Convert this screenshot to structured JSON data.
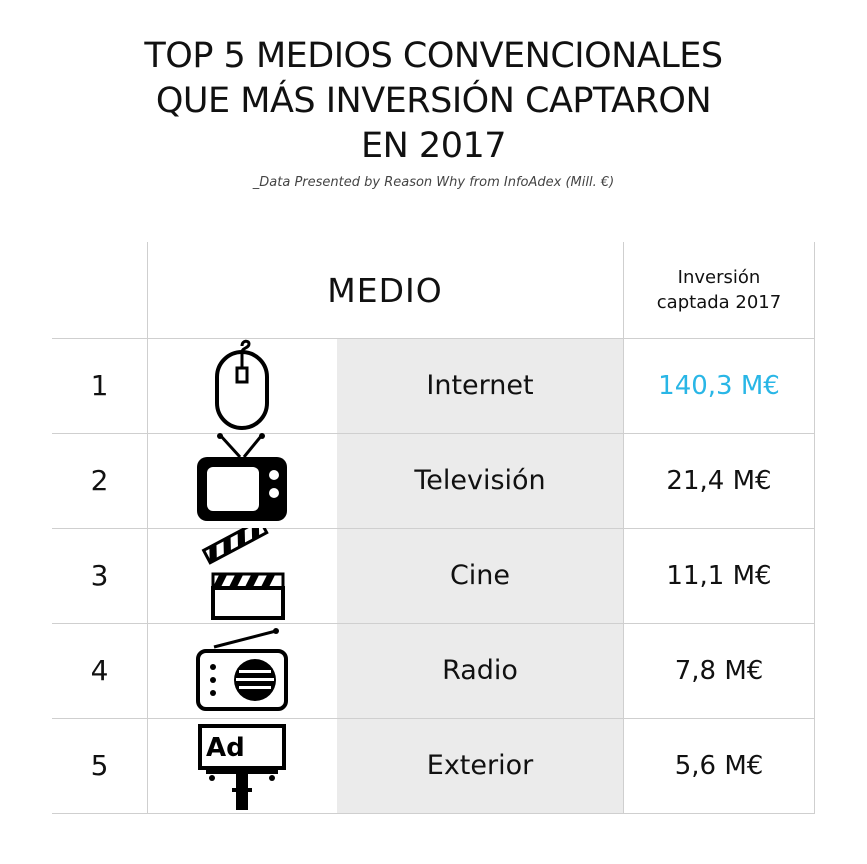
{
  "title_lines": [
    "TOP 5 MEDIOS CONVENCIONALES",
    "QUE MÁS INVERSIÓN CAPTARON",
    "EN 2017"
  ],
  "subtitle": "_Data Presented by Reason Why from InfoAdex (Mill. €)",
  "header": {
    "medio": "MEDIO",
    "investment_line1": "Inversión",
    "investment_line2": "captada 2017"
  },
  "colors": {
    "highlight": "#29b6e6",
    "text": "#111111",
    "cell_gray": "#ebebeb",
    "grid": "#cfcfcf"
  },
  "rows": [
    {
      "rank": "1",
      "medium": "Internet",
      "value_label": "140,3 M€",
      "icon": "mouse-icon"
    },
    {
      "rank": "2",
      "medium": "Televisión",
      "value_label": "21,4 M€",
      "icon": "tv-icon"
    },
    {
      "rank": "3",
      "medium": "Cine",
      "value_label": "11,1 M€",
      "icon": "clapperboard-icon"
    },
    {
      "rank": "4",
      "medium": "Radio",
      "value_label": "7,8 M€",
      "icon": "radio-icon"
    },
    {
      "rank": "5",
      "medium": "Exterior",
      "value_label": "5,6 M€",
      "icon": "billboard-icon",
      "icon_text": "Ad"
    }
  ],
  "chart_data": {
    "type": "table",
    "title": "TOP 5 MEDIOS CONVENCIONALES QUE MÁS INVERSIÓN CAPTARON EN 2017",
    "subtitle": "_Data Presented by Reason Why from InfoAdex (Mill. €)",
    "columns": [
      "",
      "MEDIO",
      "Inversión captada 2017"
    ],
    "categories": [
      "Internet",
      "Televisión",
      "Cine",
      "Radio",
      "Exterior"
    ],
    "values": [
      140.3,
      21.4,
      11.1,
      7.8,
      5.6
    ],
    "unit": "M€"
  }
}
